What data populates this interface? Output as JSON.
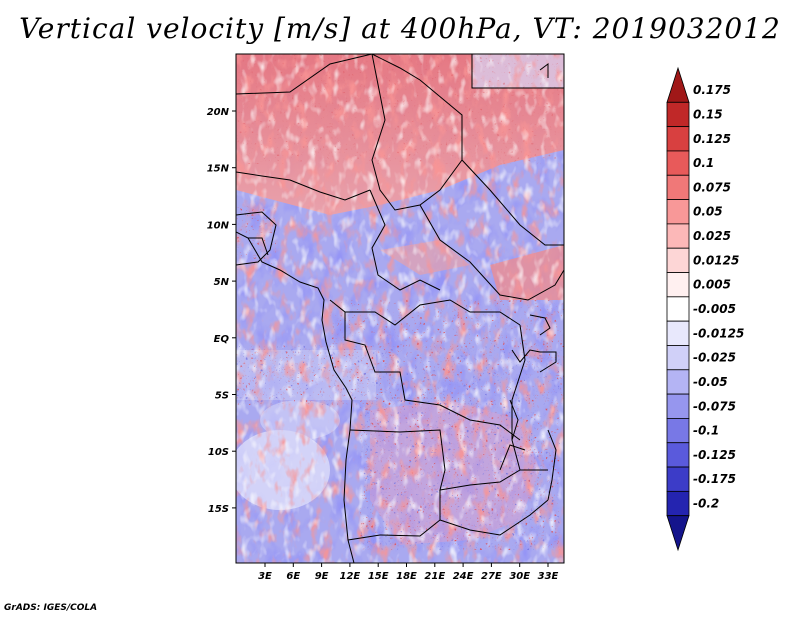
{
  "title": "Vertical velocity [m/s] at 400hPa, VT: 2019032012",
  "credit": "GrADS: IGES/COLA",
  "lat_labels": [
    "20N",
    "15N",
    "10N",
    "5N",
    "EQ",
    "5S",
    "10S",
    "15S"
  ],
  "lon_labels": [
    "3E",
    "6E",
    "9E",
    "12E",
    "15E",
    "18E",
    "21E",
    "24E",
    "27E",
    "30E",
    "33E"
  ],
  "colorbar": {
    "levels": [
      "0.175",
      "0.15",
      "0.125",
      "0.1",
      "0.075",
      "0.05",
      "0.025",
      "0.0125",
      "0.005",
      "-0.005",
      "-0.0125",
      "-0.025",
      "-0.05",
      "-0.075",
      "-0.1",
      "-0.125",
      "-0.175",
      "-0.2"
    ],
    "colors": [
      "#a01818",
      "#c02828",
      "#d84040",
      "#e85a5a",
      "#f07878",
      "#f89898",
      "#fcb8b8",
      "#fdd6d6",
      "#fff0f0",
      "#ffffff",
      "#e8e8fc",
      "#d0d0f8",
      "#b4b4f4",
      "#9696ee",
      "#7878e6",
      "#5a5adc",
      "#3c3cc8",
      "#2424b0",
      "#14148c"
    ]
  },
  "field": {
    "type": "contour-fill",
    "variable": "vertical velocity",
    "units": "m/s",
    "level": "400hPa",
    "valid_time": "2019032012"
  },
  "colors": {
    "background": "#ffffff",
    "border": "#000000"
  }
}
